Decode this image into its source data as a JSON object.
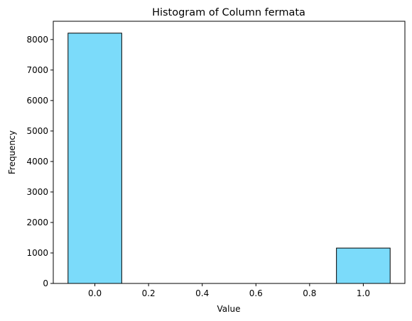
{
  "chart_data": {
    "type": "bar",
    "title": "Histogram of Column fermata",
    "xlabel": "Value",
    "ylabel": "Frequency",
    "xlim": [
      -0.155,
      1.155
    ],
    "ylim": [
      0,
      8600
    ],
    "grid": false,
    "x_ticks": [
      0.0,
      0.2,
      0.4,
      0.6,
      0.8,
      1.0
    ],
    "x_tick_labels": [
      "0.0",
      "0.2",
      "0.4",
      "0.6",
      "0.8",
      "1.0"
    ],
    "y_ticks": [
      0,
      1000,
      2000,
      3000,
      4000,
      5000,
      6000,
      7000,
      8000
    ],
    "y_tick_labels": [
      "0",
      "1000",
      "2000",
      "3000",
      "4000",
      "5000",
      "6000",
      "7000",
      "8000"
    ],
    "bins": [
      {
        "start": -0.1,
        "end": 0.1,
        "value": 8210
      },
      {
        "start": 0.1,
        "end": 0.3,
        "value": 0
      },
      {
        "start": 0.3,
        "end": 0.5,
        "value": 0
      },
      {
        "start": 0.5,
        "end": 0.7,
        "value": 0
      },
      {
        "start": 0.7,
        "end": 0.9,
        "value": 0
      },
      {
        "start": 0.9,
        "end": 1.1,
        "value": 1160
      }
    ],
    "colors": {
      "bar_fill": "#7bdbfa",
      "bar_edge": "#000000"
    }
  }
}
